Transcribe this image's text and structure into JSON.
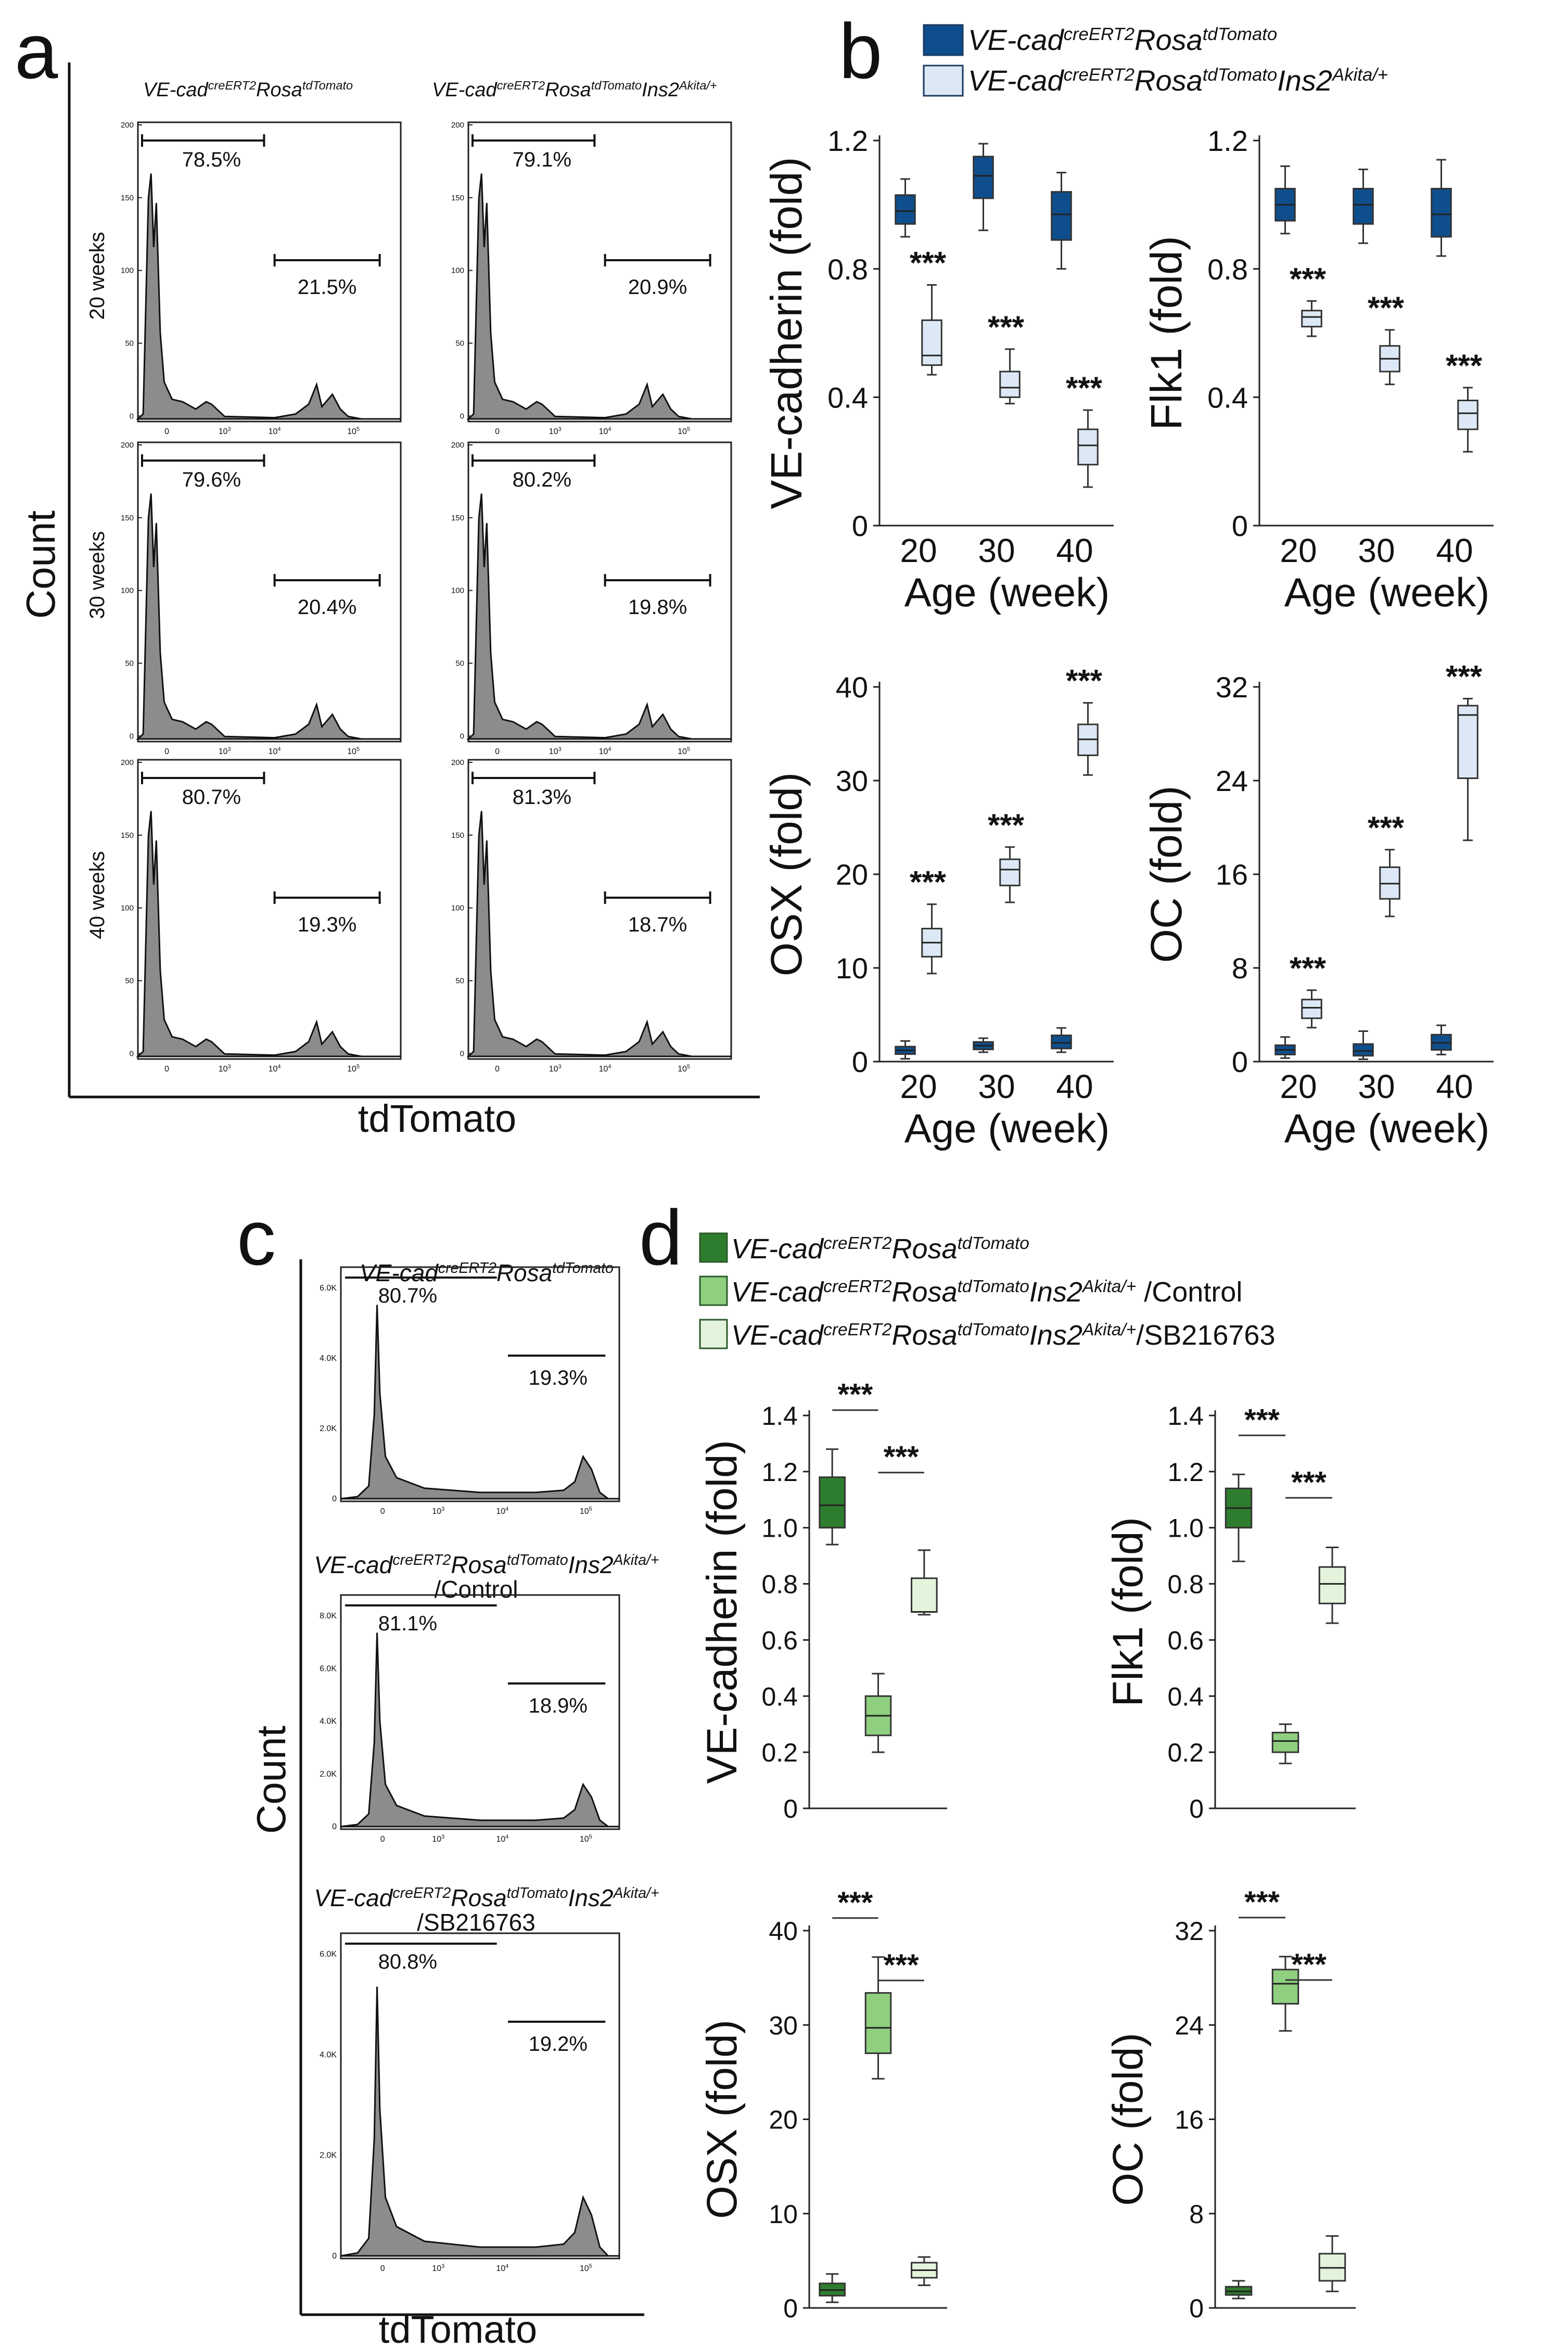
{
  "figure": {
    "panel_letters": [
      "a",
      "b",
      "c",
      "d"
    ]
  },
  "panel_a": {
    "y_label": "Count",
    "x_label": "tdTomato",
    "col_titles": [
      {
        "base": "VE-cad",
        "sup1": "creERT2",
        "mid": "Rosa",
        "sup2": "tdTomato",
        "mid2": "",
        "sup3": ""
      },
      {
        "base": "VE-cad",
        "sup1": "creERT2",
        "mid": "Rosa",
        "sup2": "tdTomato",
        "mid2": "Ins2",
        "sup3": "Akita/+"
      }
    ],
    "row_labels": [
      "20 weeks",
      "30 weeks",
      "40 weeks"
    ],
    "y_ticks": [
      "200",
      "150",
      "100",
      "50",
      "0"
    ],
    "x_ticks": [
      "0",
      "10",
      "10",
      "10"
    ],
    "x_tick_exps": [
      "",
      "3",
      "4",
      "5"
    ],
    "gates": [
      [
        "78.5%",
        "21.5%",
        "79.1%",
        "20.9%"
      ],
      [
        "79.6%",
        "20.4%",
        "80.2%",
        "19.8%"
      ],
      [
        "80.7%",
        "19.3%",
        "81.3%",
        "18.7%"
      ]
    ]
  },
  "panel_b": {
    "legend": [
      {
        "base": "VE-cad",
        "sup1": "creERT2",
        "mid": "Rosa",
        "sup2": "tdTomato",
        "mid2": "",
        "sup3": "",
        "color": "#0f4e8c"
      },
      {
        "base": "VE-cad",
        "sup1": "creERT2",
        "mid": "Rosa",
        "sup2": "tdTomato",
        "mid2": "Ins2",
        "sup3": "Akita/+",
        "color": "#dce8f5"
      }
    ],
    "x_label": "Age (week)",
    "significance": "***"
  },
  "panel_c": {
    "y_label": "Count",
    "x_label": "tdTomato",
    "y_ticks_1": [
      "6.0K",
      "4.0K",
      "2.0K",
      "0"
    ],
    "y_ticks_2": [
      "8.0K",
      "6.0K",
      "4.0K",
      "2.0K",
      "0"
    ],
    "y_ticks_3": [
      "6.0K",
      "4.0K",
      "2.0K",
      "0"
    ],
    "x_ticks": [
      "0",
      "10",
      "10",
      "10"
    ],
    "x_tick_exps": [
      "",
      "3",
      "4",
      "5"
    ],
    "titles": [
      {
        "line1": {
          "base": "VE-cad",
          "sup1": "creERT2",
          "mid": "Rosa",
          "sup2": "tdTomato",
          "mid2": "",
          "sup3": ""
        },
        "line2": ""
      },
      {
        "line1": {
          "base": "VE-cad",
          "sup1": "creERT2",
          "mid": "Rosa",
          "sup2": "tdTomato",
          "mid2": "Ins2",
          "sup3": "Akita/+"
        },
        "line2": "/Control"
      },
      {
        "line1": {
          "base": "VE-cad",
          "sup1": "creERT2",
          "mid": "Rosa",
          "sup2": "tdTomato",
          "mid2": "Ins2",
          "sup3": "Akita/+"
        },
        "line2": "/SB216763"
      }
    ],
    "gates": [
      [
        "80.7%",
        "19.3%"
      ],
      [
        "81.1%",
        "18.9%"
      ],
      [
        "80.8%",
        "19.2%"
      ]
    ]
  },
  "panel_d": {
    "legend": [
      {
        "base": "VE-cad",
        "sup1": "creERT2",
        "mid": "Rosa",
        "sup2": "tdTomato",
        "mid2": "",
        "sup3": "",
        "suffix": "",
        "color": "#2e7d2e"
      },
      {
        "base": "VE-cad",
        "sup1": "creERT2",
        "mid": "Rosa",
        "sup2": "tdTomato",
        "mid2": "Ins2",
        "sup3": "Akita/+",
        "suffix": " /Control",
        "color": "#8fcf7f"
      },
      {
        "base": "VE-cad",
        "sup1": "creERT2",
        "mid": "Rosa",
        "sup2": "tdTomato",
        "mid2": "Ins2",
        "sup3": "Akita/+",
        "suffix": "/SB216763",
        "color": "#e3f3dc"
      }
    ],
    "significance": "***"
  },
  "chart_data": [
    {
      "id": "b1",
      "type": "box",
      "panel": "b",
      "ylabel": "VE-cadherin (fold)",
      "xlabel": "Age (week)",
      "categories": [
        "20",
        "30",
        "40"
      ],
      "ylim": [
        0,
        1.2
      ],
      "yticks": [
        "0",
        "0.4",
        "0.8",
        "1.2"
      ],
      "series": [
        {
          "name": "VE-cad creERT2 Rosa tdTomato",
          "color": "#0f4e8c",
          "boxes": [
            {
              "min": 0.9,
              "q1": 0.94,
              "med": 0.98,
              "q3": 1.03,
              "max": 1.08
            },
            {
              "min": 0.92,
              "q1": 1.02,
              "med": 1.09,
              "q3": 1.15,
              "max": 1.19
            },
            {
              "min": 0.8,
              "q1": 0.89,
              "med": 0.97,
              "q3": 1.04,
              "max": 1.1
            }
          ]
        },
        {
          "name": "VE-cad creERT2 Rosa tdTomato Ins2 Akita/+",
          "color": "#dce8f5",
          "boxes": [
            {
              "min": 0.47,
              "q1": 0.5,
              "med": 0.53,
              "q3": 0.64,
              "max": 0.75
            },
            {
              "min": 0.38,
              "q1": 0.4,
              "med": 0.43,
              "q3": 0.48,
              "max": 0.55
            },
            {
              "min": 0.12,
              "q1": 0.19,
              "med": 0.25,
              "q3": 0.3,
              "max": 0.36
            }
          ]
        }
      ],
      "annotations": [
        "***",
        "***",
        "***"
      ]
    },
    {
      "id": "b2",
      "type": "box",
      "panel": "b",
      "ylabel": "Flk1 (fold)",
      "xlabel": "Age (week)",
      "categories": [
        "20",
        "30",
        "40"
      ],
      "ylim": [
        0,
        1.2
      ],
      "yticks": [
        "0",
        "0.4",
        "0.8",
        "1.2"
      ],
      "series": [
        {
          "name": "VE-cad creERT2 Rosa tdTomato",
          "color": "#0f4e8c",
          "boxes": [
            {
              "min": 0.91,
              "q1": 0.95,
              "med": 1.0,
              "q3": 1.05,
              "max": 1.12
            },
            {
              "min": 0.88,
              "q1": 0.94,
              "med": 1.0,
              "q3": 1.05,
              "max": 1.11
            },
            {
              "min": 0.84,
              "q1": 0.9,
              "med": 0.97,
              "q3": 1.05,
              "max": 1.14
            }
          ]
        },
        {
          "name": "VE-cad creERT2 Rosa tdTomato Ins2 Akita/+",
          "color": "#dce8f5",
          "boxes": [
            {
              "min": 0.59,
              "q1": 0.62,
              "med": 0.65,
              "q3": 0.67,
              "max": 0.7
            },
            {
              "min": 0.44,
              "q1": 0.48,
              "med": 0.52,
              "q3": 0.56,
              "max": 0.61
            },
            {
              "min": 0.23,
              "q1": 0.3,
              "med": 0.35,
              "q3": 0.39,
              "max": 0.43
            }
          ]
        }
      ],
      "annotations": [
        "***",
        "***",
        "***"
      ]
    },
    {
      "id": "b3",
      "type": "box",
      "panel": "b",
      "ylabel": "OSX (fold)",
      "xlabel": "Age (week)",
      "categories": [
        "20",
        "30",
        "40"
      ],
      "ylim": [
        0,
        40
      ],
      "yticks": [
        "0",
        "10",
        "20",
        "30",
        "40"
      ],
      "series": [
        {
          "name": "VE-cad creERT2 Rosa tdTomato",
          "color": "#0f4e8c",
          "boxes": [
            {
              "min": 0.3,
              "q1": 0.8,
              "med": 1.2,
              "q3": 1.6,
              "max": 2.2
            },
            {
              "min": 1.0,
              "q1": 1.3,
              "med": 1.7,
              "q3": 2.1,
              "max": 2.5
            },
            {
              "min": 1.0,
              "q1": 1.4,
              "med": 2.0,
              "q3": 2.8,
              "max": 3.6
            }
          ]
        },
        {
          "name": "VE-cad creERT2 Rosa tdTomato Ins2 Akita/+",
          "color": "#dce8f5",
          "boxes": [
            {
              "min": 9.4,
              "q1": 11.2,
              "med": 12.7,
              "q3": 14.2,
              "max": 16.8
            },
            {
              "min": 17.0,
              "q1": 18.8,
              "med": 20.5,
              "q3": 21.6,
              "max": 22.9
            },
            {
              "min": 30.6,
              "q1": 32.7,
              "med": 34.4,
              "q3": 36.0,
              "max": 38.3
            }
          ]
        }
      ],
      "annotations": [
        "***",
        "***",
        "***"
      ]
    },
    {
      "id": "b4",
      "type": "box",
      "panel": "b",
      "ylabel": "OC (fold)",
      "xlabel": "Age (week)",
      "categories": [
        "20",
        "30",
        "40"
      ],
      "ylim": [
        0,
        32
      ],
      "yticks": [
        "0",
        "8",
        "16",
        "24",
        "32"
      ],
      "series": [
        {
          "name": "VE-cad creERT2 Rosa tdTomato",
          "color": "#0f4e8c",
          "boxes": [
            {
              "min": 0.3,
              "q1": 0.6,
              "med": 1.0,
              "q3": 1.4,
              "max": 2.1
            },
            {
              "min": 0.2,
              "q1": 0.5,
              "med": 0.9,
              "q3": 1.5,
              "max": 2.6
            },
            {
              "min": 0.6,
              "q1": 1.0,
              "med": 1.6,
              "q3": 2.3,
              "max": 3.1
            }
          ]
        },
        {
          "name": "VE-cad creERT2 Rosa tdTomato Ins2 Akita/+",
          "color": "#dce8f5",
          "boxes": [
            {
              "min": 2.9,
              "q1": 3.7,
              "med": 4.6,
              "q3": 5.3,
              "max": 6.1
            },
            {
              "min": 12.4,
              "q1": 13.9,
              "med": 15.2,
              "q3": 16.6,
              "max": 18.1
            },
            {
              "min": 18.9,
              "q1": 24.2,
              "med": 29.6,
              "q3": 30.4,
              "max": 31.0
            }
          ]
        }
      ],
      "annotations": [
        "***",
        "***",
        "***"
      ]
    },
    {
      "id": "d1",
      "type": "box",
      "panel": "d",
      "ylabel": "VE-cadherin (fold)",
      "xlabel": "",
      "categories": [
        "",
        "",
        ""
      ],
      "ylim": [
        0,
        1.4
      ],
      "yticks": [
        "0",
        "0.2",
        "0.4",
        "0.6",
        "0.8",
        "1.0",
        "1.2",
        "1.4"
      ],
      "boxes": [
        {
          "color": "#2e7d2e",
          "min": 0.94,
          "q1": 1.0,
          "med": 1.08,
          "q3": 1.18,
          "max": 1.28
        },
        {
          "color": "#8fcf7f",
          "min": 0.2,
          "q1": 0.26,
          "med": 0.33,
          "q3": 0.4,
          "max": 0.48
        },
        {
          "color": "#e3f3dc",
          "min": 0.69,
          "q1": 0.7,
          "med": 0.7,
          "q3": 0.82,
          "max": 0.92
        }
      ],
      "brackets": [
        {
          "from": 0,
          "to": 1,
          "label": "***"
        },
        {
          "from": 1,
          "to": 2,
          "label": "***"
        }
      ]
    },
    {
      "id": "d2",
      "type": "box",
      "panel": "d",
      "ylabel": "Flk1 (fold)",
      "xlabel": "",
      "categories": [
        "",
        "",
        ""
      ],
      "ylim": [
        0,
        1.4
      ],
      "yticks": [
        "0",
        "0.2",
        "0.4",
        "0.6",
        "0.8",
        "1.0",
        "1.2",
        "1.4"
      ],
      "boxes": [
        {
          "color": "#2e7d2e",
          "min": 0.88,
          "q1": 1.0,
          "med": 1.07,
          "q3": 1.14,
          "max": 1.19
        },
        {
          "color": "#8fcf7f",
          "min": 0.16,
          "q1": 0.2,
          "med": 0.24,
          "q3": 0.27,
          "max": 0.3
        },
        {
          "color": "#e3f3dc",
          "min": 0.66,
          "q1": 0.73,
          "med": 0.8,
          "q3": 0.86,
          "max": 0.93
        }
      ],
      "brackets": [
        {
          "from": 0,
          "to": 1,
          "label": "***"
        },
        {
          "from": 1,
          "to": 2,
          "label": "***"
        }
      ]
    },
    {
      "id": "d3",
      "type": "box",
      "panel": "d",
      "ylabel": "OSX (fold)",
      "xlabel": "",
      "categories": [
        "",
        "",
        ""
      ],
      "ylim": [
        0,
        40
      ],
      "yticks": [
        "0",
        "10",
        "20",
        "30",
        "40"
      ],
      "boxes": [
        {
          "color": "#2e7d2e",
          "min": 0.6,
          "q1": 1.3,
          "med": 1.9,
          "q3": 2.6,
          "max": 3.6
        },
        {
          "color": "#8fcf7f",
          "min": 24.3,
          "q1": 27.0,
          "med": 29.7,
          "q3": 33.4,
          "max": 37.2
        },
        {
          "color": "#e3f3dc",
          "min": 2.4,
          "q1": 3.2,
          "med": 4.0,
          "q3": 4.8,
          "max": 5.4
        }
      ],
      "brackets": [
        {
          "from": 0,
          "to": 1,
          "label": "***"
        },
        {
          "from": 1,
          "to": 2,
          "label": "***"
        }
      ]
    },
    {
      "id": "d4",
      "type": "box",
      "panel": "d",
      "ylabel": "OC (fold)",
      "xlabel": "",
      "categories": [
        "",
        "",
        ""
      ],
      "ylim": [
        0,
        32
      ],
      "yticks": [
        "0",
        "8",
        "16",
        "24",
        "32"
      ],
      "boxes": [
        {
          "color": "#2e7d2e",
          "min": 0.8,
          "q1": 1.1,
          "med": 1.4,
          "q3": 1.8,
          "max": 2.3
        },
        {
          "color": "#8fcf7f",
          "min": 23.5,
          "q1": 25.8,
          "med": 27.5,
          "q3": 28.7,
          "max": 29.8
        },
        {
          "color": "#e3f3dc",
          "min": 1.4,
          "q1": 2.3,
          "med": 3.4,
          "q3": 4.6,
          "max": 6.1
        }
      ],
      "brackets": [
        {
          "from": 0,
          "to": 1,
          "label": "***"
        },
        {
          "from": 1,
          "to": 2,
          "label": "***"
        }
      ]
    }
  ]
}
